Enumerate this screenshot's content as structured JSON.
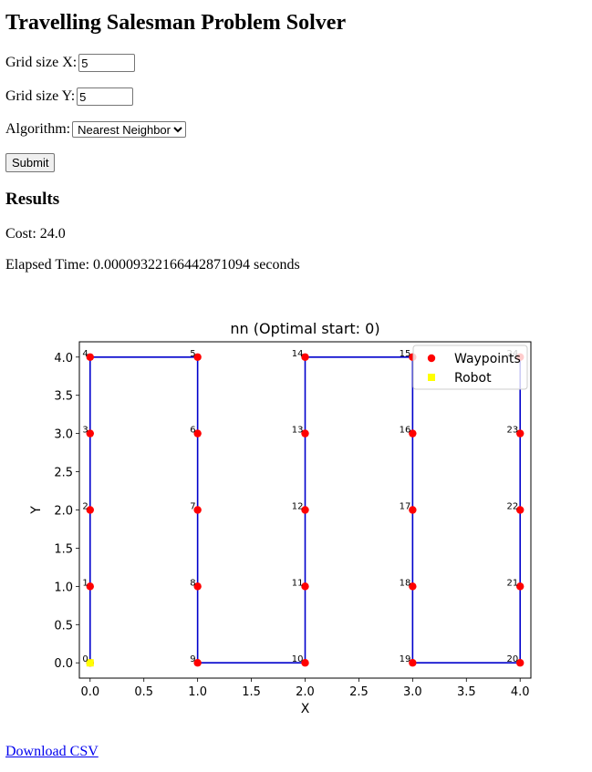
{
  "form": {
    "title": "Travelling Salesman Problem Solver",
    "grid_x_label": "Grid size X:",
    "grid_x_value": "5",
    "grid_y_label": "Grid size Y:",
    "grid_y_value": "5",
    "algorithm_label": "Algorithm:",
    "algorithm_selected": "Nearest Neighbor",
    "submit_label": "Submit"
  },
  "results": {
    "heading": "Results",
    "cost_text": "Cost: 24.0",
    "elapsed_text": "Elapsed Time: 0.00009322166442871094 seconds"
  },
  "download": {
    "label": "Download CSV"
  },
  "chart_data": {
    "type": "scatter",
    "title": "nn (Optimal start: 0)",
    "xlabel": "X",
    "ylabel": "Y",
    "xlim": [
      -0.1,
      4.1
    ],
    "ylim": [
      -0.2,
      4.2
    ],
    "x_ticks": [
      "0.0",
      "0.5",
      "1.0",
      "1.5",
      "2.0",
      "2.5",
      "3.0",
      "3.5",
      "4.0"
    ],
    "y_ticks": [
      "0.0",
      "0.5",
      "1.0",
      "1.5",
      "2.0",
      "2.5",
      "3.0",
      "3.5",
      "4.0"
    ],
    "legend_position": "top-right",
    "series": [
      {
        "name": "Waypoints",
        "color": "#ff0000",
        "marker": "circle",
        "points": [
          {
            "label": "0",
            "x": 0,
            "y": 0
          },
          {
            "label": "1",
            "x": 0,
            "y": 1
          },
          {
            "label": "2",
            "x": 0,
            "y": 2
          },
          {
            "label": "3",
            "x": 0,
            "y": 3
          },
          {
            "label": "4",
            "x": 0,
            "y": 4
          },
          {
            "label": "5",
            "x": 1,
            "y": 4
          },
          {
            "label": "6",
            "x": 1,
            "y": 3
          },
          {
            "label": "7",
            "x": 1,
            "y": 2
          },
          {
            "label": "8",
            "x": 1,
            "y": 1
          },
          {
            "label": "9",
            "x": 1,
            "y": 0
          },
          {
            "label": "10",
            "x": 2,
            "y": 0
          },
          {
            "label": "11",
            "x": 2,
            "y": 1
          },
          {
            "label": "12",
            "x": 2,
            "y": 2
          },
          {
            "label": "13",
            "x": 2,
            "y": 3
          },
          {
            "label": "14",
            "x": 2,
            "y": 4
          },
          {
            "label": "15",
            "x": 3,
            "y": 4
          },
          {
            "label": "16",
            "x": 3,
            "y": 3
          },
          {
            "label": "17",
            "x": 3,
            "y": 2
          },
          {
            "label": "18",
            "x": 3,
            "y": 1
          },
          {
            "label": "19",
            "x": 3,
            "y": 0
          },
          {
            "label": "20",
            "x": 4,
            "y": 0
          },
          {
            "label": "21",
            "x": 4,
            "y": 1
          },
          {
            "label": "22",
            "x": 4,
            "y": 2
          },
          {
            "label": "23",
            "x": 4,
            "y": 3
          },
          {
            "label": "24",
            "x": 4,
            "y": 4
          }
        ]
      },
      {
        "name": "Robot",
        "color": "#ffff00",
        "marker": "square",
        "points": [
          {
            "x": 0,
            "y": 0
          }
        ]
      }
    ],
    "route": {
      "color": "#0000cc",
      "order": [
        0,
        1,
        2,
        3,
        4,
        5,
        6,
        7,
        8,
        9,
        10,
        11,
        12,
        13,
        14,
        15,
        16,
        17,
        18,
        19,
        20,
        21,
        22,
        23,
        24
      ]
    }
  }
}
